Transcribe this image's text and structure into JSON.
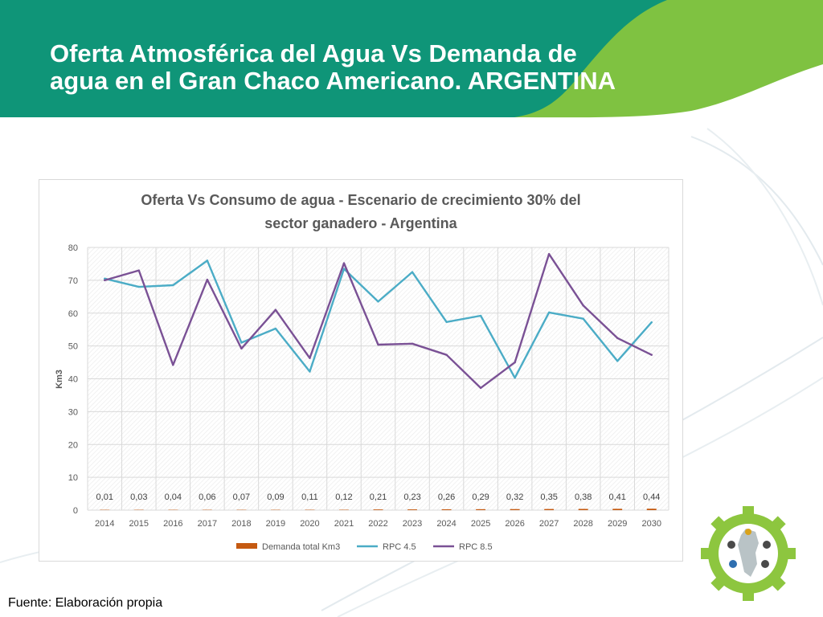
{
  "slide": {
    "title_line1": "Oferta Atmosférica del Agua Vs Demanda de",
    "title_line2": "agua en el Gran Chaco Americano. ARGENTINA",
    "source": "Fuente: Elaboración propia"
  },
  "colors": {
    "header_teal": "#0f9578",
    "header_green": "#7fc241",
    "demand": "#c55a11",
    "rpc45": "#4bacc6",
    "rpc85": "#7a5195",
    "logo_green": "#8dc63f"
  },
  "chart_data": {
    "type": "line",
    "title_line1": "Oferta Vs Consumo de agua - Escenario de crecimiento 30% del",
    "title_line2": "sector ganadero - Argentina",
    "xlabel": "",
    "ylabel": "Km3",
    "ylim": [
      0,
      80
    ],
    "yticks": [
      "0",
      "10",
      "20",
      "30",
      "40",
      "50",
      "60",
      "70",
      "80"
    ],
    "grid": true,
    "legend_position": "bottom",
    "categories": [
      "2014",
      "2015",
      "2016",
      "2017",
      "2018",
      "2019",
      "2020",
      "2021",
      "2022",
      "2023",
      "2024",
      "2025",
      "2026",
      "2027",
      "2028",
      "2029",
      "2030"
    ],
    "series": [
      {
        "name": "Demanda total Km3",
        "type": "bar",
        "values": [
          0.01,
          0.03,
          0.04,
          0.06,
          0.07,
          0.09,
          0.11,
          0.12,
          0.21,
          0.23,
          0.26,
          0.29,
          0.32,
          0.35,
          0.38,
          0.41,
          0.44
        ],
        "labels": [
          "0,01",
          "0,03",
          "0,04",
          "0,06",
          "0,07",
          "0,09",
          "0,11",
          "0,12",
          "0,21",
          "0,23",
          "0,26",
          "0,29",
          "0,32",
          "0,35",
          "0,38",
          "0,41",
          "0,44"
        ]
      },
      {
        "name": "RPC 4.5",
        "type": "line",
        "values": [
          70.5,
          68,
          68.5,
          76,
          51,
          55.3,
          42.2,
          73.5,
          63.5,
          72.5,
          57.3,
          59.2,
          40.3,
          60.2,
          58.3,
          45.4,
          57.2
        ]
      },
      {
        "name": "RPC 8.5",
        "type": "line",
        "values": [
          70,
          73,
          44.2,
          70.2,
          49.2,
          61,
          46.3,
          75.2,
          50.4,
          50.7,
          47.3,
          37.2,
          45,
          78,
          62.3,
          52.4,
          47.3
        ]
      }
    ]
  }
}
